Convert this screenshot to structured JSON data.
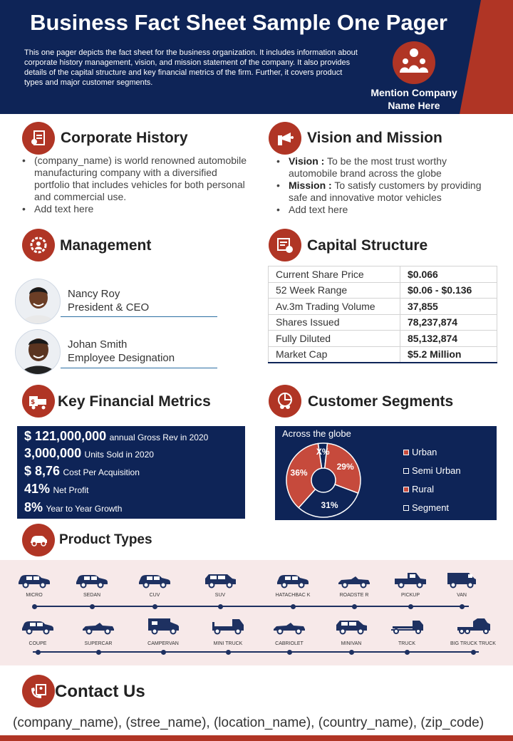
{
  "header": {
    "title": "Business Fact Sheet Sample One Pager",
    "description": "This one pager depicts the fact sheet for the business organization. It includes information about corporate history management, vision, and mission statement of the company. It also provides details of the capital structure and key financial metrics of the firm. Further, it covers product types and major customer segments.",
    "company_line1": "Mention Company",
    "company_line2": "Name Here"
  },
  "corporate_history": {
    "title": "Corporate  History",
    "items": [
      "(company_name) is world renowned automobile manufacturing company with a diversified portfolio that includes vehicles for both personal and commercial use.",
      "Add text here"
    ]
  },
  "vision_mission": {
    "title": "Vision and Mission",
    "vision_label": "Vision :",
    "vision_text": "To be the most trust worthy automobile brand across the globe",
    "mission_label": "Mission :",
    "mission_text": "To satisfy customers by providing safe and innovative motor vehicles",
    "extra": "Add text here"
  },
  "management": {
    "title": "Management",
    "people": [
      {
        "name": "Nancy Roy",
        "role": "President & CEO"
      },
      {
        "name": "Johan Smith",
        "role": "Employee Designation"
      }
    ]
  },
  "capital_structure": {
    "title": "Capital Structure",
    "rows": [
      {
        "label": "Current Share Price",
        "value": "$0.066"
      },
      {
        "label": "52 Week Range",
        "value": "$0.06 - $0.136"
      },
      {
        "label": "Av.3m Trading Volume",
        "value": "37,855"
      },
      {
        "label": "Shares Issued",
        "value": "78,237,874"
      },
      {
        "label": "Fully Diluted",
        "value": "85,132,874"
      },
      {
        "label": "Market  Cap",
        "value": "$5.2 Million"
      }
    ]
  },
  "financial": {
    "title": "Key Financial Metrics",
    "metrics": [
      {
        "big": "$ 121,000,000",
        "small": "annual Gross Rev in 2020"
      },
      {
        "big": "3,000,000",
        "small": "Units Sold in 2020"
      },
      {
        "big": "$ 8,76",
        "small": "Cost Per Acquisition"
      },
      {
        "big": "41%",
        "small": "Net Profit"
      },
      {
        "big": "8%",
        "small": "Year to Year Growth"
      }
    ]
  },
  "customer_segments": {
    "title": "Customer Segments",
    "subtitle": "Across the globe",
    "colors": {
      "red": "#c64a3c",
      "navy": "#0e2457",
      "border": "#ffffff"
    },
    "legend": [
      "Urban",
      "Semi Urban",
      "Rural",
      "Segment"
    ]
  },
  "chart_data": {
    "type": "pie",
    "title": "Across the globe",
    "slices": [
      {
        "label": "X%",
        "value": 4,
        "color": "#0e2457"
      },
      {
        "label": "29%",
        "value": 29,
        "color": "#c64a3c"
      },
      {
        "label": "31%",
        "value": 31,
        "color": "#0e2457"
      },
      {
        "label": "36%",
        "value": 36,
        "color": "#c64a3c"
      }
    ],
    "legend": [
      "Urban",
      "Semi Urban",
      "Rural",
      "Segment"
    ]
  },
  "products": {
    "title": "Product Types",
    "row1": [
      "MICRO",
      "SEDAN",
      "CUV",
      "SUV",
      "HATACHBAC K",
      "ROADSTE R",
      "PICKUP",
      "VAN"
    ],
    "row2": [
      "COUPE",
      "SUPERCAR",
      "CAMPERVAN",
      "MINI TRUCK",
      "CABRIOLET",
      "MINIVAN",
      "TRUCK",
      "BIG TRUCK TRUCK"
    ]
  },
  "contact": {
    "title": "Contact Us",
    "address": "(company_name), (stree_name), (location_name), (country_name), (zip_code)"
  },
  "theme": {
    "navy": "#0e2457",
    "red": "#b03525",
    "band": "#f7e9e9"
  }
}
